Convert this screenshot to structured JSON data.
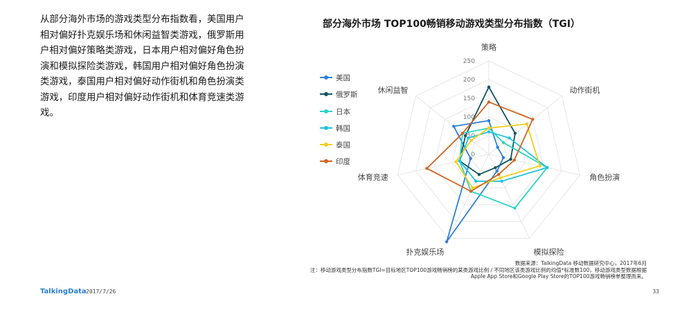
{
  "intro_text": "从部分海外市场的游戏类型分布指数看，美国用户相对偏好扑克娱乐场和休闲益智类游戏，俄罗斯用户相对偏好策略类游戏，日本用户相对偏好角色扮演和模拟探险类游戏，韩国用户相对偏好角色扮演类游戏，泰国用户相对偏好动作街机和角色扮演类游戏，印度用户相对偏好动作街机和体育竞速类游戏。",
  "source_note": "数据来源：TalkingData 移动数据研究中心，2017年6月",
  "formula_note": "注：移动游戏类型分布指数TGI=目标地区TOP100游戏畅销榜的某类游戏比例 / 不同地区该类游戏比例的均值*标准数100，移动游戏类型数据根据",
  "formula_note_2": "Apple App Store和Google Play Store的TOP100游戏畅销榜单整理而来。",
  "footer": {
    "brand": "TalkingData",
    "date": "2017/7/26",
    "page": "33"
  },
  "chart_data": {
    "type": "radar",
    "title": "部分海外市场  TOP100畅销移动游戏类型分布指数（TGI）",
    "axes": [
      "策略",
      "动作街机",
      "角色扮演",
      "模拟探险",
      "扑克娱乐场",
      "体育竞速",
      "休闲益智"
    ],
    "rlim": [
      0,
      250
    ],
    "ticks": [
      "0",
      "50",
      "100",
      "150",
      "200",
      "250"
    ],
    "series": [
      {
        "name": "美国",
        "color": "#2f7fd8",
        "values": [
          90,
          30,
          40,
          50,
          260,
          50,
          120
        ]
      },
      {
        "name": "俄罗斯",
        "color": "#10565f",
        "values": [
          180,
          90,
          60,
          40,
          60,
          80,
          80
        ]
      },
      {
        "name": "日本",
        "color": "#2bd6c3",
        "values": [
          70,
          50,
          160,
          160,
          110,
          80,
          90
        ]
      },
      {
        "name": "韩国",
        "color": "#1fc3e0",
        "values": [
          60,
          70,
          160,
          80,
          80,
          80,
          70
        ]
      },
      {
        "name": "泰国",
        "color": "#f2cf1c",
        "values": [
          70,
          130,
          140,
          70,
          100,
          90,
          60
        ]
      },
      {
        "name": "印度",
        "color": "#d2651f",
        "values": [
          140,
          150,
          70,
          60,
          110,
          170,
          90
        ]
      }
    ]
  }
}
